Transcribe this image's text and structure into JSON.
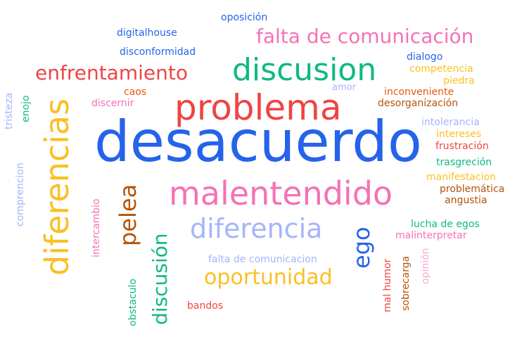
{
  "word_cloud": {
    "words": [
      {
        "text": "oposición",
        "color": "#2563eb"
      },
      {
        "text": "digitalhouse",
        "color": "#2563eb"
      },
      {
        "text": "falta de comunicación",
        "color": "#f472b6"
      },
      {
        "text": "disconformidad",
        "color": "#2563eb"
      },
      {
        "text": "dialogo",
        "color": "#2563eb"
      },
      {
        "text": "discusion",
        "color": "#10b981"
      },
      {
        "text": "competencia",
        "color": "#fbbf24"
      },
      {
        "text": "enfrentamiento",
        "color": "#ef4444"
      },
      {
        "text": "piedra",
        "color": "#fbbf24"
      },
      {
        "text": "amor",
        "color": "#a5b4fc"
      },
      {
        "text": "inconveniente",
        "color": "#ea580c"
      },
      {
        "text": "caos",
        "color": "#ea580c"
      },
      {
        "text": "desorganización",
        "color": "#b45309"
      },
      {
        "text": "discernir",
        "color": "#f472b6"
      },
      {
        "text": "problema",
        "color": "#ef4444"
      },
      {
        "text": "tristeza",
        "color": "#a5b4fc"
      },
      {
        "text": "enojo",
        "color": "#10b981"
      },
      {
        "text": "intolerancia",
        "color": "#a5b4fc"
      },
      {
        "text": "intereses",
        "color": "#fbbf24"
      },
      {
        "text": "desacuerdo",
        "color": "#2563eb"
      },
      {
        "text": "frustración",
        "color": "#ef4444"
      },
      {
        "text": "diferencias",
        "color": "#fbbf24"
      },
      {
        "text": "trasgreción",
        "color": "#10b981"
      },
      {
        "text": "manifestacion",
        "color": "#fbbf24"
      },
      {
        "text": "comprencion",
        "color": "#a5b4fc"
      },
      {
        "text": "problemática",
        "color": "#b45309"
      },
      {
        "text": "malentendido",
        "color": "#f472b6"
      },
      {
        "text": "angustia",
        "color": "#b45309"
      },
      {
        "text": "pelea",
        "color": "#b45309"
      },
      {
        "text": "intercambio",
        "color": "#f472b6"
      },
      {
        "text": "lucha de egos",
        "color": "#10b981"
      },
      {
        "text": "diferencia",
        "color": "#a5b4fc"
      },
      {
        "text": "ego",
        "color": "#2563eb"
      },
      {
        "text": "malinterpretar",
        "color": "#f472b6"
      },
      {
        "text": "discusión",
        "color": "#10b981"
      },
      {
        "text": "falta de comunicacion",
        "color": "#a5b4fc"
      },
      {
        "text": "mal humor",
        "color": "#ef4444"
      },
      {
        "text": "sobrecarga",
        "color": "#b45309"
      },
      {
        "text": "opinión",
        "color": "#f9a8d4"
      },
      {
        "text": "oportunidad",
        "color": "#fbbf24"
      },
      {
        "text": "obstaculo",
        "color": "#10b981"
      },
      {
        "text": "bandos",
        "color": "#ef4444"
      }
    ]
  }
}
